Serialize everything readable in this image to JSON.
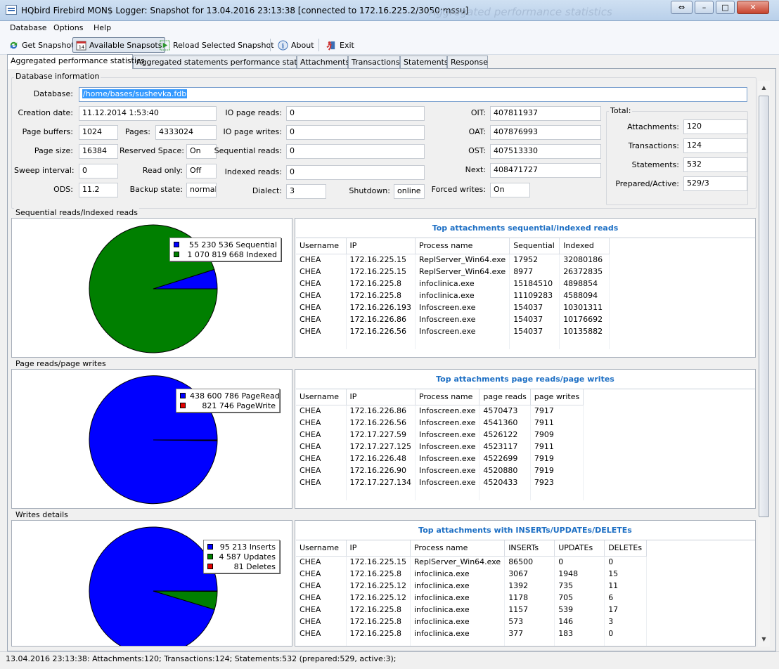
{
  "window": {
    "title": "HQbird Firebird MON$ Logger: Snapshot for 13.04.2016 23:13:38 [connected to 172.16.225.2/3050:mssu]",
    "ghost_title": "Aggregated performance statistics"
  },
  "menu": [
    "Database",
    "Options",
    "Help"
  ],
  "toolbar": {
    "get_snapshot": "Get Snapshot",
    "available_snapshots": "Available Snapsots",
    "reload": "Reload Selected Snapshot",
    "about": "About",
    "exit": "Exit"
  },
  "tabs": [
    "Aggregated performance statistics",
    "Aggregated statements performance statistics",
    "Attachments",
    "Transactions",
    "Statements",
    "Response"
  ],
  "dbinfo": {
    "group_title": "Database information",
    "database_label": "Database:",
    "database": "/home/bases/sushevka.fdb",
    "creation_date_label": "Creation date:",
    "creation_date": "11.12.2014 1:53:40",
    "page_buffers_label": "Page buffers:",
    "page_buffers": "1024",
    "pages_label": "Pages:",
    "pages": "4333024",
    "page_size_label": "Page size:",
    "page_size": "16384",
    "reserved_space_label": "Reserved Space:",
    "reserved_space": "On",
    "sweep_interval_label": "Sweep interval:",
    "sweep_interval": "0",
    "read_only_label": "Read only:",
    "read_only": "Off",
    "ods_label": "ODS:",
    "ods": "11.2",
    "backup_state_label": "Backup state:",
    "backup_state": "normal",
    "io_page_reads_label": "IO page reads:",
    "io_page_reads": "0",
    "io_page_writes_label": "IO page writes:",
    "io_page_writes": "0",
    "sequential_reads_label": "Sequential reads:",
    "sequential_reads": "0",
    "indexed_reads_label": "Indexed reads:",
    "indexed_reads": "0",
    "dialect_label": "Dialect:",
    "dialect": "3",
    "shutdown_label": "Shutdown:",
    "shutdown": "online",
    "oit_label": "OIT:",
    "oit": "407811937",
    "oat_label": "OAT:",
    "oat": "407876993",
    "ost_label": "OST:",
    "ost": "407513330",
    "next_label": "Next:",
    "next": "408471727",
    "forced_writes_label": "Forced writes:",
    "forced_writes": "On",
    "total_label": "Total:",
    "attachments_label": "Attachments:",
    "attachments": "120",
    "transactions_label": "Transactions:",
    "transactions": "124",
    "statements_label": "Statements:",
    "statements": "532",
    "prepared_active_label": "Prepared/Active:",
    "prepared_active": "529/3"
  },
  "sections": [
    {
      "title": "Sequential reads/Indexed reads",
      "pie": [
        {
          "label": "55 230 536 Sequential",
          "value": 55230536,
          "color": "#0000ff"
        },
        {
          "label": "1 070 819 668 Indexed",
          "value": 1070819668,
          "color": "#007f00"
        }
      ],
      "table_title": "Top attachments  sequential/indexed reads",
      "columns": [
        "Username",
        "IP",
        "Process name",
        "Sequential",
        "Indexed"
      ],
      "rows": [
        [
          "CHEA",
          "172.16.225.15",
          "ReplServer_Win64.exe",
          "17952",
          "32080186"
        ],
        [
          "CHEA",
          "172.16.225.15",
          "ReplServer_Win64.exe",
          "8977",
          "26372835"
        ],
        [
          "CHEA",
          "172.16.225.8",
          "infoclinica.exe",
          "15184510",
          "4898854"
        ],
        [
          "CHEA",
          "172.16.225.8",
          "infoclinica.exe",
          "11109283",
          "4588094"
        ],
        [
          "CHEA",
          "172.16.226.193",
          "Infoscreen.exe",
          "154037",
          "10301311"
        ],
        [
          "CHEA",
          "172.16.226.86",
          "Infoscreen.exe",
          "154037",
          "10176692"
        ],
        [
          "CHEA",
          "172.16.226.56",
          "Infoscreen.exe",
          "154037",
          "10135882"
        ]
      ]
    },
    {
      "title": "Page reads/page writes",
      "pie": [
        {
          "label": "438 600 786 PageRead",
          "value": 438600786,
          "color": "#0000ff"
        },
        {
          "label": "821 746 PageWrite",
          "value": 821746,
          "color": "#e00000"
        }
      ],
      "table_title": "Top attachments page reads/page writes",
      "columns": [
        "Username",
        "IP",
        "Process name",
        "page reads",
        "page writes"
      ],
      "rows": [
        [
          "CHEA",
          "172.16.226.86",
          "Infoscreen.exe",
          "4570473",
          "7917"
        ],
        [
          "CHEA",
          "172.16.226.56",
          "Infoscreen.exe",
          "4541360",
          "7911"
        ],
        [
          "CHEA",
          "172.17.227.59",
          "Infoscreen.exe",
          "4526122",
          "7909"
        ],
        [
          "CHEA",
          "172.17.227.125",
          "Infoscreen.exe",
          "4523117",
          "7911"
        ],
        [
          "CHEA",
          "172.16.226.48",
          "Infoscreen.exe",
          "4522699",
          "7919"
        ],
        [
          "CHEA",
          "172.16.226.90",
          "Infoscreen.exe",
          "4520880",
          "7919"
        ],
        [
          "CHEA",
          "172.17.227.134",
          "Infoscreen.exe",
          "4520433",
          "7923"
        ]
      ]
    },
    {
      "title": "Writes details",
      "pie": [
        {
          "label": "95 213 Inserts",
          "value": 95213,
          "color": "#0000ff"
        },
        {
          "label": "4 587 Updates",
          "value": 4587,
          "color": "#007f00"
        },
        {
          "label": "81 Deletes",
          "value": 81,
          "color": "#e00000"
        }
      ],
      "table_title": "Top attachments  with INSERTs/UPDATEs/DELETEs",
      "columns": [
        "Username",
        "IP",
        "Process name",
        "INSERTs",
        "UPDATEs",
        "DELETEs"
      ],
      "rows": [
        [
          "CHEA",
          "172.16.225.15",
          "ReplServer_Win64.exe",
          "86500",
          "0",
          "0"
        ],
        [
          "CHEA",
          "172.16.225.8",
          "infoclinica.exe",
          "3067",
          "1948",
          "15"
        ],
        [
          "CHEA",
          "172.16.225.12",
          "infoclinica.exe",
          "1392",
          "735",
          "11"
        ],
        [
          "CHEA",
          "172.16.225.12",
          "infoclinica.exe",
          "1178",
          "705",
          "6"
        ],
        [
          "CHEA",
          "172.16.225.8",
          "infoclinica.exe",
          "1157",
          "539",
          "17"
        ],
        [
          "CHEA",
          "172.16.225.8",
          "infoclinica.exe",
          "573",
          "146",
          "3"
        ],
        [
          "CHEA",
          "172.16.225.8",
          "infoclinica.exe",
          "377",
          "183",
          "0"
        ]
      ]
    }
  ],
  "status": "13.04.2016 23:13:38: Attachments:120; Transactions:124; Statements:532 (prepared:529, active:3);"
}
